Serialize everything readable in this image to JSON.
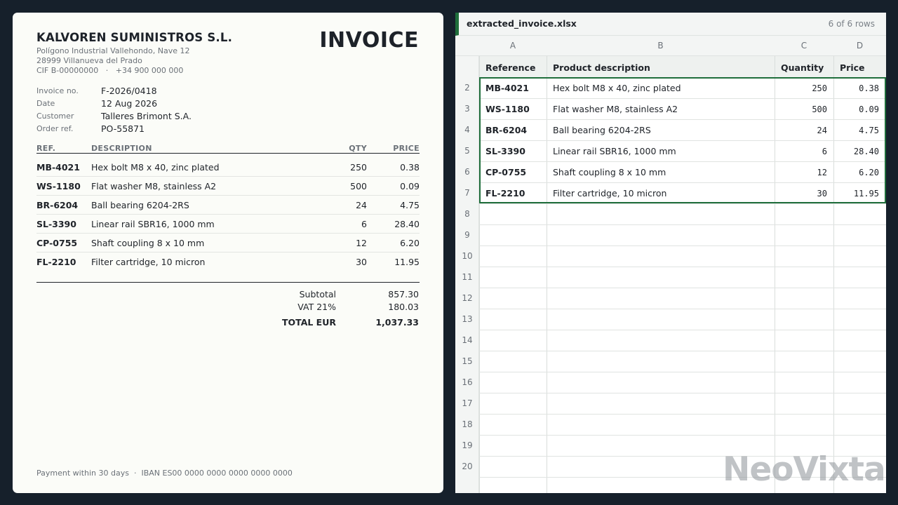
{
  "invoice": {
    "company": "KALVOREN SUMINISTROS S.L.",
    "address1": "Polígono Industrial Vallehondo, Nave 12",
    "address2": "28999 Villanueva del Prado",
    "contact": "CIF B-00000000   ·   +34 900 000 000",
    "title": "INVOICE",
    "meta": [
      {
        "label": "Invoice no.",
        "value": "F-2026/0418"
      },
      {
        "label": "Date",
        "value": "12 Aug 2026"
      },
      {
        "label": "Customer",
        "value": "Talleres Brimont S.A."
      },
      {
        "label": "Order ref.",
        "value": "PO-55871"
      }
    ],
    "headers": {
      "ref": "REF.",
      "desc": "DESCRIPTION",
      "qty": "QTY",
      "price": "PRICE"
    },
    "items": [
      {
        "ref": "MB-4021",
        "desc": "Hex bolt M8 x 40, zinc plated",
        "qty": "250",
        "price": "0.38"
      },
      {
        "ref": "WS-1180",
        "desc": "Flat washer M8, stainless A2",
        "qty": "500",
        "price": "0.09"
      },
      {
        "ref": "BR-6204",
        "desc": "Ball bearing 6204-2RS",
        "qty": "24",
        "price": "4.75"
      },
      {
        "ref": "SL-3390",
        "desc": "Linear rail SBR16, 1000 mm",
        "qty": "6",
        "price": "28.40"
      },
      {
        "ref": "CP-0755",
        "desc": "Shaft coupling 8 x 10 mm",
        "qty": "12",
        "price": "6.20"
      },
      {
        "ref": "FL-2210",
        "desc": "Filter cartridge, 10 micron",
        "qty": "30",
        "price": "11.95"
      }
    ],
    "totals": {
      "subtotal_label": "Subtotal",
      "subtotal": "857.30",
      "vat_label": "VAT 21%",
      "vat": "180.03",
      "total_label": "TOTAL EUR",
      "total": "1,037.33"
    },
    "footer": "Payment within 30 days  ·  IBAN ES00 0000 0000 0000 0000 0000"
  },
  "sheet": {
    "file_name": "extracted_invoice.xlsx",
    "row_count": "6 of 6 rows",
    "columns": [
      "A",
      "B",
      "C",
      "D"
    ],
    "header_row": [
      "Reference",
      "Product description",
      "Quantity",
      "Price"
    ],
    "row_numbers": [
      "2",
      "3",
      "4",
      "5",
      "6",
      "7",
      "8",
      "9",
      "10",
      "11",
      "12",
      "13",
      "14",
      "15",
      "16",
      "17",
      "18",
      "19",
      "20"
    ],
    "rows": [
      [
        "MB-4021",
        "Hex bolt M8 x 40, zinc plated",
        "250",
        "0.38"
      ],
      [
        "WS-1180",
        "Flat washer M8, stainless A2",
        "500",
        "0.09"
      ],
      [
        "BR-6204",
        "Ball bearing 6204-2RS",
        "24",
        "4.75"
      ],
      [
        "SL-3390",
        "Linear rail SBR16, 1000 mm",
        "6",
        "28.40"
      ],
      [
        "CP-0755",
        "Shaft coupling 8 x 10 mm",
        "12",
        "6.20"
      ],
      [
        "FL-2210",
        "Filter cartridge, 10 micron",
        "30",
        "11.95"
      ]
    ]
  },
  "watermark": "NeoVixta"
}
